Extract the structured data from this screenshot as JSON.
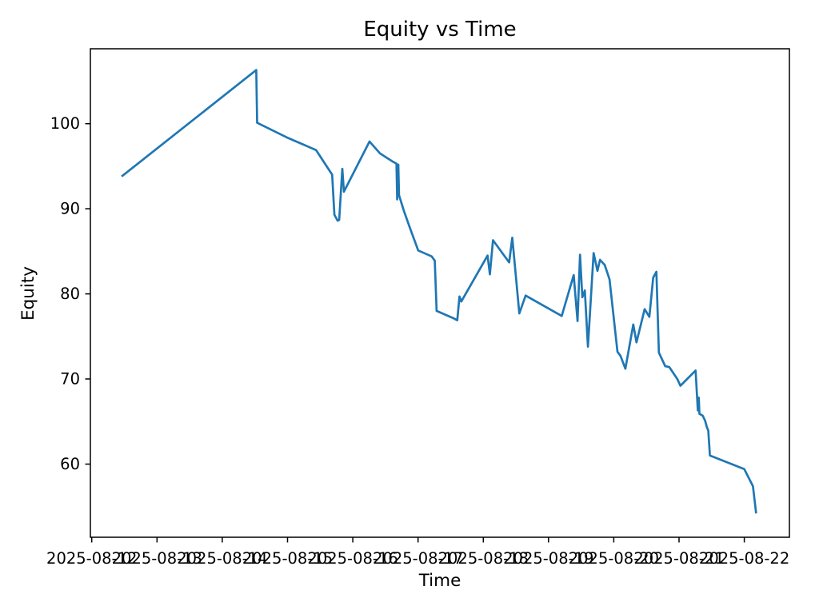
{
  "chart_data": {
    "type": "line",
    "title": "Equity vs Time",
    "xlabel": "Time",
    "ylabel": "Equity",
    "line_color": "#1f77b4",
    "background_color": "#ffffff",
    "grid": false,
    "legend": null,
    "x_tick_labels": [
      "2025-08-12",
      "2025-08-13",
      "2025-08-14",
      "2025-08-15",
      "2025-08-16",
      "2025-08-17",
      "2025-08-18",
      "2025-08-19",
      "2025-08-20",
      "2025-08-21",
      "2025-08-22"
    ],
    "y_ticks": [
      60,
      70,
      80,
      90,
      100
    ],
    "ylim": [
      51.4,
      108.8
    ],
    "xlim": [
      "2025-08-11T23:30",
      "2025-08-22T16:35"
    ],
    "series": [
      {
        "name": "Equity",
        "points": [
          [
            "2025-08-12T11:00",
            93.8
          ],
          [
            "2025-08-14T12:30",
            106.3
          ],
          [
            "2025-08-14T12:50",
            100.1
          ],
          [
            "2025-08-15T00:20",
            98.3
          ],
          [
            "2025-08-15T10:30",
            96.9
          ],
          [
            "2025-08-15T16:25",
            94.0
          ],
          [
            "2025-08-15T17:15",
            89.3
          ],
          [
            "2025-08-15T18:25",
            88.6
          ],
          [
            "2025-08-15T19:00",
            88.7
          ],
          [
            "2025-08-15T20:10",
            94.7
          ],
          [
            "2025-08-15T20:45",
            92.0
          ],
          [
            "2025-08-16T06:10",
            97.9
          ],
          [
            "2025-08-16T10:00",
            96.5
          ],
          [
            "2025-08-16T14:55",
            95.5
          ],
          [
            "2025-08-16T16:05",
            95.3
          ],
          [
            "2025-08-16T16:20",
            91.1
          ],
          [
            "2025-08-16T16:45",
            95.2
          ],
          [
            "2025-08-16T17:00",
            91.6
          ],
          [
            "2025-08-16T18:45",
            89.8
          ],
          [
            "2025-08-16T21:05",
            87.7
          ],
          [
            "2025-08-17T00:05",
            85.1
          ],
          [
            "2025-08-17T05:00",
            84.4
          ],
          [
            "2025-08-17T06:10",
            83.9
          ],
          [
            "2025-08-17T06:50",
            78.0
          ],
          [
            "2025-08-17T13:15",
            77.1
          ],
          [
            "2025-08-17T14:25",
            76.9
          ],
          [
            "2025-08-17T15:15",
            79.7
          ],
          [
            "2025-08-17T15:55",
            79.1
          ],
          [
            "2025-08-18T01:35",
            84.5
          ],
          [
            "2025-08-18T02:25",
            82.3
          ],
          [
            "2025-08-18T03:35",
            86.3
          ],
          [
            "2025-08-18T09:30",
            83.7
          ],
          [
            "2025-08-18T10:40",
            86.6
          ],
          [
            "2025-08-18T11:30",
            83.8
          ],
          [
            "2025-08-18T13:15",
            77.7
          ],
          [
            "2025-08-18T15:35",
            79.8
          ],
          [
            "2025-08-19T04:50",
            77.4
          ],
          [
            "2025-08-19T09:15",
            82.2
          ],
          [
            "2025-08-19T10:40",
            76.8
          ],
          [
            "2025-08-19T11:35",
            84.6
          ],
          [
            "2025-08-19T12:25",
            79.6
          ],
          [
            "2025-08-19T13:20",
            80.4
          ],
          [
            "2025-08-19T14:30",
            73.8
          ],
          [
            "2025-08-19T16:35",
            84.8
          ],
          [
            "2025-08-19T18:00",
            82.7
          ],
          [
            "2025-08-19T18:55",
            84.0
          ],
          [
            "2025-08-19T20:40",
            83.4
          ],
          [
            "2025-08-19T22:25",
            81.7
          ],
          [
            "2025-08-20T01:20",
            73.2
          ],
          [
            "2025-08-20T02:30",
            72.7
          ],
          [
            "2025-08-20T04:15",
            71.2
          ],
          [
            "2025-08-20T07:10",
            76.4
          ],
          [
            "2025-08-20T08:20",
            74.3
          ],
          [
            "2025-08-20T11:20",
            78.2
          ],
          [
            "2025-08-20T13:05",
            77.3
          ],
          [
            "2025-08-20T14:30",
            81.9
          ],
          [
            "2025-08-20T15:40",
            82.6
          ],
          [
            "2025-08-20T16:35",
            73.1
          ],
          [
            "2025-08-20T18:55",
            71.5
          ],
          [
            "2025-08-20T20:25",
            71.4
          ],
          [
            "2025-08-20T23:20",
            70.0
          ],
          [
            "2025-08-21T00:30",
            69.2
          ],
          [
            "2025-08-21T06:05",
            71.0
          ],
          [
            "2025-08-21T06:55",
            66.3
          ],
          [
            "2025-08-21T07:15",
            67.8
          ],
          [
            "2025-08-21T07:30",
            65.9
          ],
          [
            "2025-08-21T08:40",
            65.7
          ],
          [
            "2025-08-21T09:35",
            65.1
          ],
          [
            "2025-08-21T10:10",
            64.4
          ],
          [
            "2025-08-21T10:45",
            63.9
          ],
          [
            "2025-08-21T11:20",
            61.0
          ],
          [
            "2025-08-22T00:00",
            59.4
          ],
          [
            "2025-08-22T03:10",
            57.4
          ],
          [
            "2025-08-22T04:20",
            54.2
          ]
        ]
      }
    ]
  }
}
